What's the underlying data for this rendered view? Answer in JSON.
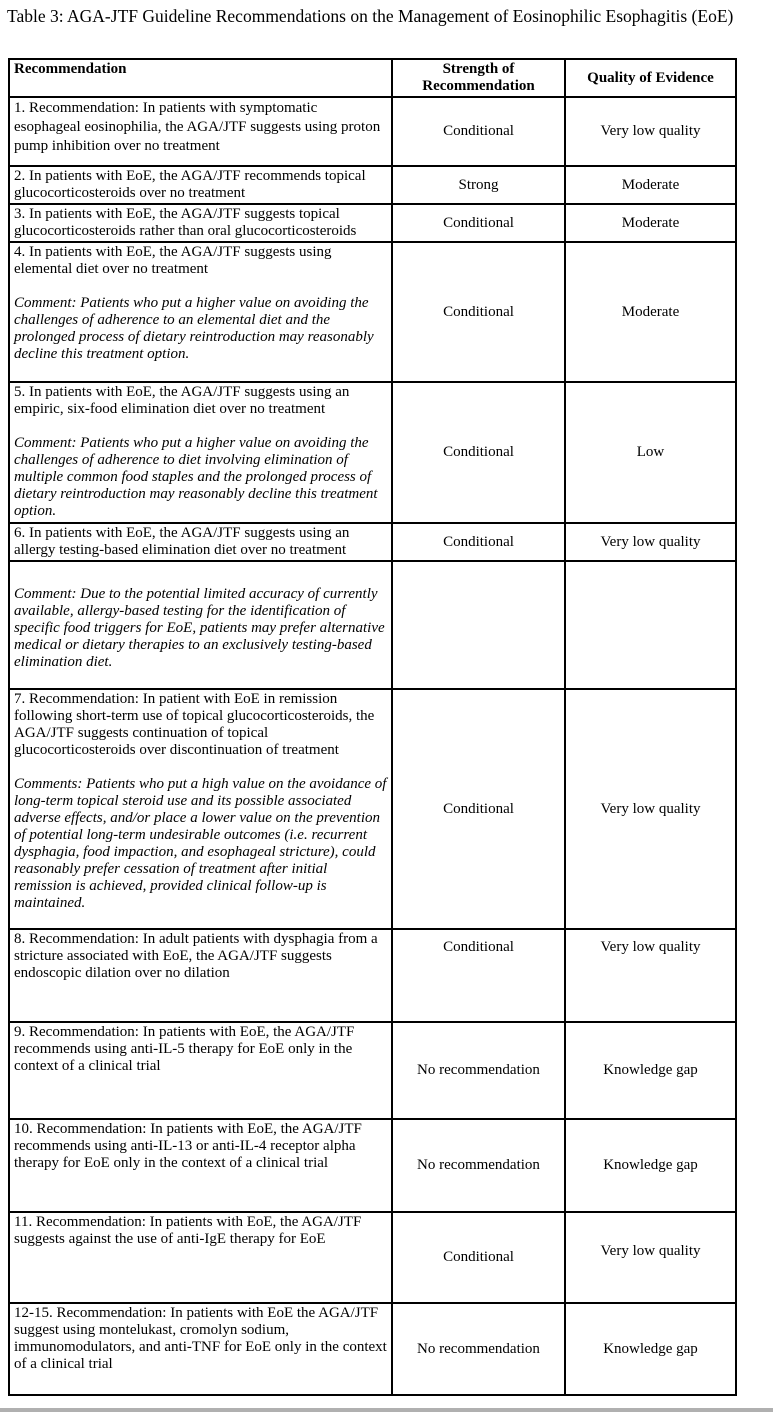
{
  "page": {
    "title": "Table 3: AGA-JTF Guideline Recommendations on the Management of Eosinophilic Esophagitis (EoE)"
  },
  "colors": {
    "text": "#000000",
    "border": "#000000",
    "page_edge": "#b0b0b0"
  },
  "table": {
    "header": {
      "recommendation": "Recommendation",
      "strength": "Strength of Recommendation",
      "quality": "Quality of Evidence"
    },
    "rows": [
      {
        "statement": "1. Recommendation: In patients with symptomatic esophageal eosinophilia, the AGA/JTF suggests using proton pump inhibition over no treatment",
        "comment": "",
        "strength": "Conditional",
        "quality": "Very low quality"
      },
      {
        "statement": "2. In patients with EoE, the AGA/JTF recommends topical glucocorticosteroids over no treatment",
        "comment": "",
        "strength": "Strong",
        "quality": "Moderate"
      },
      {
        "statement": "3. In patients with EoE, the AGA/JTF suggests topical glucocorticosteroids rather than oral glucocorticosteroids",
        "comment": "",
        "strength": "Conditional",
        "quality": "Moderate"
      },
      {
        "statement": "4. In patients with EoE, the AGA/JTF suggests using elemental diet over no treatment",
        "comment": "Comment: Patients who put a higher value on avoiding the challenges of adherence to an elemental diet and the prolonged process of dietary reintroduction may reasonably decline this treatment option.",
        "strength": "Conditional",
        "quality": "Moderate"
      },
      {
        "statement": "5. In patients with EoE, the AGA/JTF suggests using an empiric, six-food elimination diet over no treatment",
        "comment": "Comment: Patients who put a higher value on avoiding the challenges of adherence to diet involving elimination of multiple common food staples and the prolonged process of dietary reintroduction may reasonably decline this treatment option.",
        "strength": "Conditional",
        "quality": "Low"
      },
      {
        "statement": "6. In patients with EoE, the AGA/JTF suggests using an allergy testing-based elimination diet over no treatment",
        "comment": "",
        "strength": "Conditional",
        "quality": "Very low quality"
      },
      {
        "statement": "",
        "comment": "Comment: Due to the potential limited accuracy of currently available, allergy-based testing for the identification of specific food triggers for EoE, patients may prefer alternative medical or dietary therapies to an exclusively testing-based elimination diet.",
        "strength": "",
        "quality": ""
      },
      {
        "statement": "7. Recommendation: In patient with EoE in remission following short-term use of topical glucocorticosteroids, the AGA/JTF suggests continuation of topical glucocorticosteroids over discontinuation of treatment",
        "comment": "Comments: Patients who put a high value on the avoidance of long-term topical steroid use and its possible associated adverse effects, and/or place a lower value on the prevention of potential long-term undesirable outcomes (i.e. recurrent dysphagia, food impaction, and esophageal stricture), could reasonably prefer cessation of treatment after initial remission is achieved, provided clinical follow-up is maintained.",
        "strength": "Conditional",
        "quality": "Very low quality"
      },
      {
        "statement": "8. Recommendation: In adult patients with dysphagia from a stricture associated with EoE, the AGA/JTF suggests endoscopic dilation over no dilation",
        "comment": "",
        "strength": "Conditional",
        "quality": "Very low quality"
      },
      {
        "statement": "9. Recommendation: In patients with EoE, the AGA/JTF recommends using anti-IL-5 therapy for EoE only in the context of a clinical trial",
        "comment": "",
        "strength": "No recommendation",
        "quality": "Knowledge gap"
      },
      {
        "statement": "10. Recommendation: In patients with EoE, the AGA/JTF recommends using anti-IL-13 or anti-IL-4 receptor alpha therapy for EoE only in the context of a clinical trial",
        "comment": "",
        "strength": "No recommendation",
        "quality": "Knowledge gap"
      },
      {
        "statement": "11. Recommendation: In patients with EoE, the AGA/JTF suggests against the use of anti-IgE therapy for EoE",
        "comment": "",
        "strength": "Conditional",
        "quality": "Very low quality"
      },
      {
        "statement": "12-15. Recommendation: In patients with EoE the AGA/JTF suggest using montelukast, cromolyn sodium, immunomodulators, and anti-TNF for EoE only in the context of a clinical trial",
        "comment": "",
        "strength": "No recommendation",
        "quality": "Knowledge gap"
      }
    ]
  }
}
